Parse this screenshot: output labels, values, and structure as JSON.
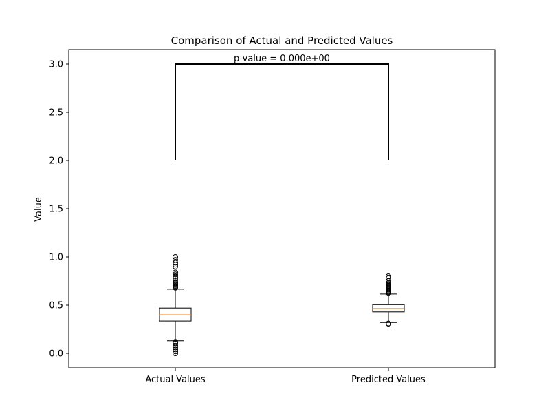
{
  "chart_data": {
    "type": "box",
    "title": "Comparison of Actual and Predicted Values",
    "xlabel": "",
    "ylabel": "Value",
    "ylim": [
      -0.15,
      3.15
    ],
    "yticks": [
      0.0,
      0.5,
      1.0,
      1.5,
      2.0,
      2.5,
      3.0
    ],
    "ytick_labels": [
      "0.0",
      "0.5",
      "1.0",
      "1.5",
      "2.0",
      "2.5",
      "3.0"
    ],
    "categories": [
      "Actual Values",
      "Predicted Values"
    ],
    "boxes": [
      {
        "name": "Actual Values",
        "whisker_low": 0.13,
        "q1": 0.335,
        "median": 0.4,
        "q3": 0.47,
        "whisker_high": 0.665,
        "outliers": [
          0.0,
          0.02,
          0.04,
          0.06,
          0.08,
          0.1,
          0.11,
          0.12,
          0.68,
          0.69,
          0.7,
          0.71,
          0.72,
          0.73,
          0.74,
          0.76,
          0.78,
          0.8,
          0.82,
          0.84,
          0.9,
          0.92,
          0.94,
          0.97,
          1.0
        ]
      },
      {
        "name": "Predicted Values",
        "whisker_low": 0.32,
        "q1": 0.43,
        "median": 0.465,
        "q3": 0.505,
        "whisker_high": 0.615,
        "outliers": [
          0.3,
          0.31,
          0.62,
          0.63,
          0.64,
          0.65,
          0.66,
          0.67,
          0.68,
          0.69,
          0.7,
          0.71,
          0.72,
          0.73,
          0.75,
          0.78,
          0.8
        ]
      }
    ],
    "significance_bracket": {
      "from": "Actual Values",
      "to": "Predicted Values",
      "y_bottom": 2.0,
      "y_top": 3.0,
      "label": "p-value = 0.000e+00"
    },
    "colors": {
      "median": "#ff7f0e",
      "box": "#000000",
      "background": "#ffffff"
    },
    "grid": false,
    "legend": "none"
  }
}
